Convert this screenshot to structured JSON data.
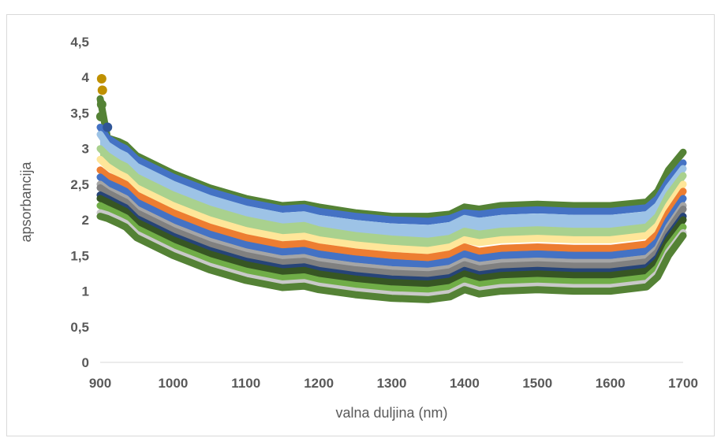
{
  "chart_data": {
    "type": "line",
    "title": "",
    "xlabel": "valna duljina (nm)",
    "ylabel": "apsorbancija",
    "xlim": [
      900,
      1700
    ],
    "ylim": [
      0,
      4.5
    ],
    "x_ticks": [
      "900",
      "1000",
      "1100",
      "1200",
      "1300",
      "1400",
      "1500",
      "1600",
      "1700"
    ],
    "y_ticks": [
      "0",
      "0,5",
      "1",
      "1,5",
      "2",
      "2,5",
      "3",
      "3,5",
      "4",
      "4,5"
    ],
    "grid": false,
    "legend": "none",
    "x": [
      900,
      910,
      925,
      935,
      950,
      1000,
      1050,
      1100,
      1150,
      1180,
      1200,
      1250,
      1300,
      1350,
      1380,
      1400,
      1420,
      1450,
      1500,
      1550,
      1600,
      1650,
      1665,
      1680,
      1700
    ],
    "series": [
      {
        "color": "#548235",
        "values": [
          3.7,
          3.15,
          3.1,
          3.05,
          2.9,
          2.65,
          2.45,
          2.3,
          2.2,
          2.22,
          2.18,
          2.1,
          2.05,
          2.05,
          2.08,
          2.18,
          2.15,
          2.2,
          2.22,
          2.2,
          2.2,
          2.25,
          2.4,
          2.7,
          2.95
        ]
      },
      {
        "color": "#4472c4",
        "values": [
          3.3,
          3.15,
          3.05,
          3.0,
          2.85,
          2.6,
          2.4,
          2.25,
          2.15,
          2.17,
          2.12,
          2.05,
          2.0,
          1.98,
          2.02,
          2.1,
          2.08,
          2.12,
          2.14,
          2.12,
          2.12,
          2.17,
          2.3,
          2.55,
          2.8
        ]
      },
      {
        "color": "#9dc3e6",
        "values": [
          3.2,
          3.05,
          2.95,
          2.9,
          2.75,
          2.5,
          2.3,
          2.15,
          2.05,
          2.07,
          2.02,
          1.95,
          1.9,
          1.88,
          1.92,
          2.02,
          1.98,
          2.02,
          2.04,
          2.02,
          2.02,
          2.07,
          2.2,
          2.45,
          2.72
        ]
      },
      {
        "color": "#a9d18e",
        "values": [
          3.0,
          2.9,
          2.8,
          2.75,
          2.6,
          2.35,
          2.15,
          2.0,
          1.9,
          1.92,
          1.86,
          1.78,
          1.73,
          1.7,
          1.74,
          1.84,
          1.8,
          1.84,
          1.86,
          1.84,
          1.84,
          1.9,
          2.05,
          2.35,
          2.62
        ]
      },
      {
        "color": "#ffe699",
        "values": [
          2.85,
          2.75,
          2.65,
          2.6,
          2.45,
          2.2,
          2.0,
          1.85,
          1.75,
          1.77,
          1.72,
          1.65,
          1.6,
          1.57,
          1.62,
          1.72,
          1.68,
          1.72,
          1.74,
          1.72,
          1.72,
          1.78,
          1.92,
          2.2,
          2.5
        ]
      },
      {
        "color": "#ed7d31",
        "values": [
          2.7,
          2.62,
          2.55,
          2.5,
          2.35,
          2.1,
          1.9,
          1.75,
          1.65,
          1.67,
          1.62,
          1.55,
          1.5,
          1.47,
          1.52,
          1.62,
          1.56,
          1.6,
          1.62,
          1.6,
          1.6,
          1.66,
          1.8,
          2.1,
          2.4
        ]
      },
      {
        "color": "#4472c4",
        "values": [
          2.6,
          2.52,
          2.45,
          2.4,
          2.25,
          2.0,
          1.8,
          1.65,
          1.55,
          1.57,
          1.52,
          1.45,
          1.4,
          1.37,
          1.42,
          1.52,
          1.46,
          1.5,
          1.52,
          1.5,
          1.5,
          1.56,
          1.7,
          2.0,
          2.3
        ]
      },
      {
        "color": "#a5a5a5",
        "values": [
          2.5,
          2.42,
          2.35,
          2.3,
          2.15,
          1.9,
          1.7,
          1.55,
          1.45,
          1.47,
          1.42,
          1.35,
          1.3,
          1.28,
          1.32,
          1.42,
          1.36,
          1.4,
          1.42,
          1.4,
          1.4,
          1.46,
          1.6,
          1.9,
          2.2
        ]
      },
      {
        "color": "#808080",
        "values": [
          2.45,
          2.38,
          2.3,
          2.25,
          2.1,
          1.85,
          1.65,
          1.5,
          1.4,
          1.42,
          1.37,
          1.3,
          1.25,
          1.23,
          1.27,
          1.37,
          1.31,
          1.35,
          1.37,
          1.35,
          1.35,
          1.41,
          1.55,
          1.85,
          2.15
        ]
      },
      {
        "color": "#264478",
        "values": [
          2.35,
          2.3,
          2.22,
          2.17,
          2.02,
          1.77,
          1.57,
          1.42,
          1.32,
          1.34,
          1.29,
          1.22,
          1.17,
          1.15,
          1.19,
          1.29,
          1.23,
          1.27,
          1.29,
          1.27,
          1.27,
          1.33,
          1.47,
          1.77,
          2.05
        ]
      },
      {
        "color": "#375623",
        "values": [
          2.3,
          2.25,
          2.17,
          2.12,
          1.97,
          1.72,
          1.52,
          1.37,
          1.27,
          1.29,
          1.24,
          1.17,
          1.12,
          1.1,
          1.14,
          1.24,
          1.18,
          1.22,
          1.24,
          1.22,
          1.22,
          1.28,
          1.42,
          1.72,
          2.0
        ]
      },
      {
        "color": "#70ad47",
        "values": [
          2.2,
          2.15,
          2.08,
          2.03,
          1.88,
          1.63,
          1.43,
          1.28,
          1.18,
          1.2,
          1.15,
          1.08,
          1.03,
          1.01,
          1.05,
          1.15,
          1.09,
          1.13,
          1.15,
          1.13,
          1.13,
          1.19,
          1.33,
          1.63,
          1.9
        ]
      },
      {
        "color": "#c9c9c9",
        "values": [
          2.1,
          2.07,
          2.0,
          1.95,
          1.8,
          1.55,
          1.35,
          1.2,
          1.1,
          1.12,
          1.07,
          1.0,
          0.95,
          0.93,
          0.97,
          1.07,
          1.01,
          1.05,
          1.07,
          1.05,
          1.05,
          1.11,
          1.25,
          1.55,
          1.82
        ]
      },
      {
        "color": "#548235",
        "values": [
          2.05,
          2.02,
          1.95,
          1.9,
          1.75,
          1.5,
          1.3,
          1.15,
          1.05,
          1.07,
          1.02,
          0.95,
          0.9,
          0.88,
          0.92,
          1.02,
          0.96,
          1.0,
          1.02,
          1.0,
          1.0,
          1.06,
          1.2,
          1.5,
          1.78
        ]
      }
    ],
    "fills": [
      {
        "color": "#9dc3e6",
        "top": 2,
        "bottom": 3
      },
      {
        "color": "#a9d18e",
        "top": 3,
        "bottom": 4
      },
      {
        "color": "#4472c4",
        "top": 5,
        "bottom": 6
      },
      {
        "color": "#a5a5a5",
        "top": 6,
        "bottom": 7
      },
      {
        "color": "#808080",
        "top": 7,
        "bottom": 8
      },
      {
        "color": "#264478",
        "top": 8,
        "bottom": 9
      },
      {
        "color": "#375623",
        "top": 9,
        "bottom": 10
      },
      {
        "color": "#375623",
        "top": 10,
        "bottom": 11
      }
    ],
    "markers": [
      {
        "x": 902,
        "y": 3.98,
        "color": "#bf9000"
      },
      {
        "x": 903,
        "y": 3.82,
        "color": "#bf9000"
      },
      {
        "x": 902,
        "y": 3.62,
        "color": "#548235"
      },
      {
        "x": 901,
        "y": 3.45,
        "color": "#548235"
      },
      {
        "x": 910,
        "y": 3.3,
        "color": "#2f5597"
      }
    ]
  }
}
